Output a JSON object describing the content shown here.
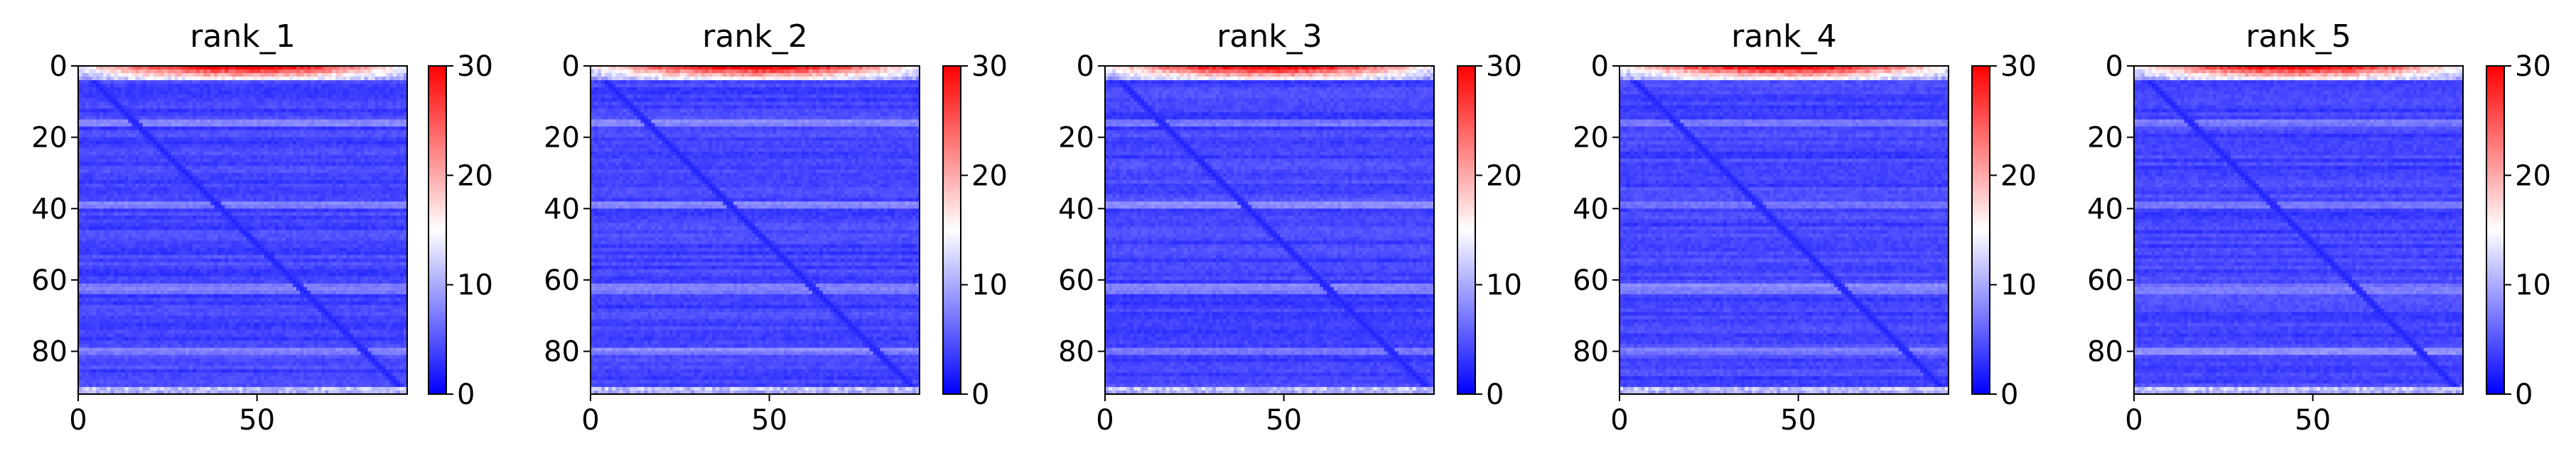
{
  "chart_data": [
    {
      "type": "heatmap",
      "title": "rank_1",
      "x_ticks": [
        0,
        50
      ],
      "y_ticks": [
        0,
        20,
        40,
        60,
        80
      ],
      "xlim": [
        0,
        92
      ],
      "ylim": [
        92,
        0
      ],
      "colorbar": {
        "colormap": "bwr",
        "vmin": 0,
        "vmax": 30,
        "ticks": [
          0,
          10,
          20,
          30
        ]
      },
      "matrix_size": 92,
      "description_values": {
        "typical": 4,
        "diagonal": 2,
        "top_rows_max": 28,
        "bottom_rows_max": 14
      }
    },
    {
      "type": "heatmap",
      "title": "rank_2",
      "x_ticks": [
        0,
        50
      ],
      "y_ticks": [
        0,
        20,
        40,
        60,
        80
      ],
      "xlim": [
        0,
        92
      ],
      "ylim": [
        92,
        0
      ],
      "colorbar": {
        "colormap": "bwr",
        "vmin": 0,
        "vmax": 30,
        "ticks": [
          0,
          10,
          20,
          30
        ]
      },
      "matrix_size": 92,
      "description_values": {
        "typical": 4,
        "diagonal": 2,
        "top_rows_max": 28,
        "bottom_rows_max": 14
      }
    },
    {
      "type": "heatmap",
      "title": "rank_3",
      "x_ticks": [
        0,
        50
      ],
      "y_ticks": [
        0,
        20,
        40,
        60,
        80
      ],
      "xlim": [
        0,
        92
      ],
      "ylim": [
        92,
        0
      ],
      "colorbar": {
        "colormap": "bwr",
        "vmin": 0,
        "vmax": 30,
        "ticks": [
          0,
          10,
          20,
          30
        ]
      },
      "matrix_size": 92,
      "description_values": {
        "typical": 4,
        "diagonal": 2,
        "top_rows_max": 28,
        "bottom_rows_max": 14
      }
    },
    {
      "type": "heatmap",
      "title": "rank_4",
      "x_ticks": [
        0,
        50
      ],
      "y_ticks": [
        0,
        20,
        40,
        60,
        80
      ],
      "xlim": [
        0,
        92
      ],
      "ylim": [
        92,
        0
      ],
      "colorbar": {
        "colormap": "bwr",
        "vmin": 0,
        "vmax": 30,
        "ticks": [
          0,
          10,
          20,
          30
        ]
      },
      "matrix_size": 92,
      "description_values": {
        "typical": 4,
        "diagonal": 2,
        "top_rows_max": 28,
        "bottom_rows_max": 14
      }
    },
    {
      "type": "heatmap",
      "title": "rank_5",
      "x_ticks": [
        0,
        50
      ],
      "y_ticks": [
        0,
        20,
        40,
        60,
        80
      ],
      "xlim": [
        0,
        92
      ],
      "ylim": [
        92,
        0
      ],
      "colorbar": {
        "colormap": "bwr",
        "vmin": 0,
        "vmax": 30,
        "ticks": [
          0,
          10,
          20,
          30
        ]
      },
      "matrix_size": 92,
      "description_values": {
        "typical": 4,
        "diagonal": 2,
        "top_rows_max": 28,
        "bottom_rows_max": 14
      }
    }
  ]
}
